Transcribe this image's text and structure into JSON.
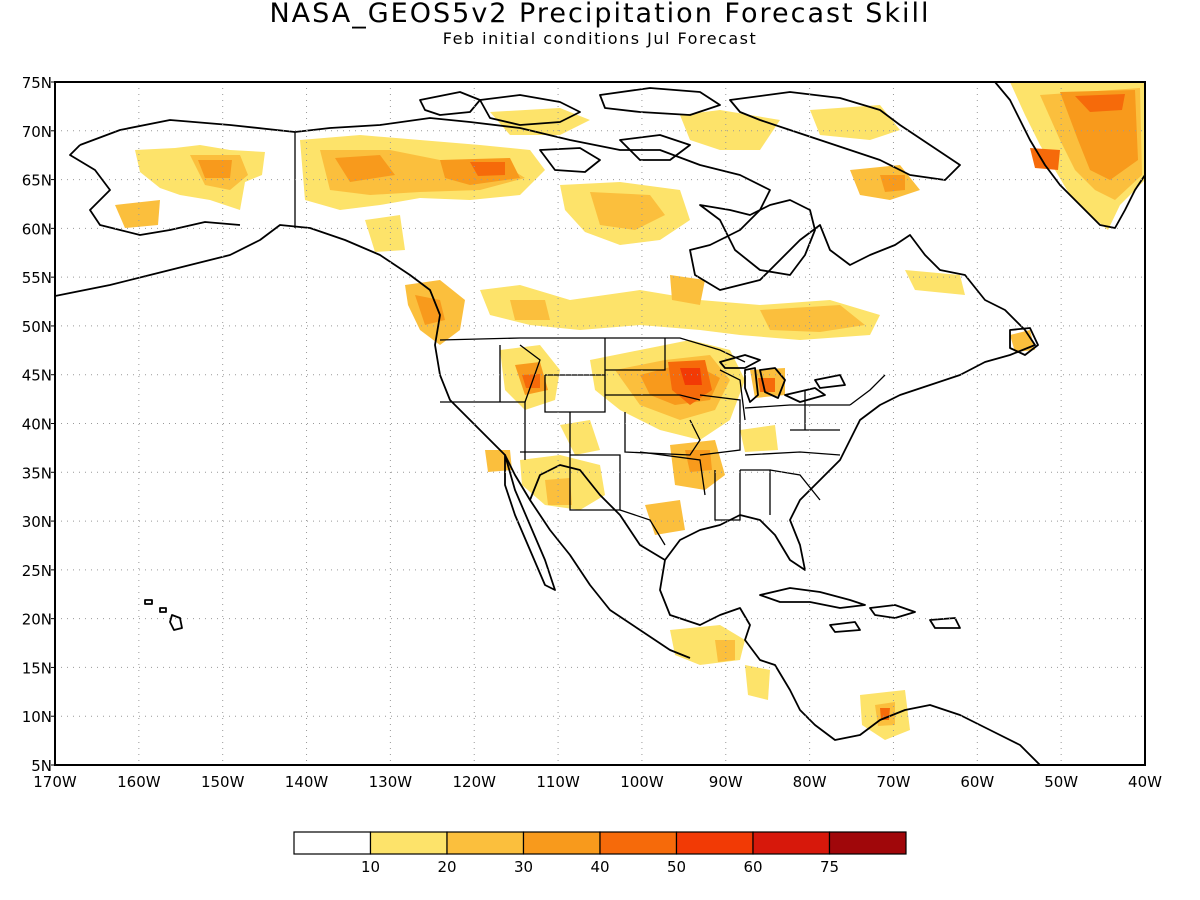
{
  "title": "NASA_GEOS5v2 Precipitation Forecast Skill",
  "subtitle": "Feb initial conditions  Jul Forecast",
  "lat_labels": [
    "75N",
    "70N",
    "65N",
    "60N",
    "55N",
    "50N",
    "45N",
    "40N",
    "35N",
    "30N",
    "25N",
    "20N",
    "15N",
    "10N",
    "5N"
  ],
  "lon_labels": [
    "170W",
    "160W",
    "150W",
    "140W",
    "130W",
    "120W",
    "110W",
    "100W",
    "90W",
    "80W",
    "70W",
    "60W",
    "50W",
    "40W"
  ],
  "colorbar": {
    "bins": [
      "#ffffff",
      "#fde36a",
      "#fbbf3d",
      "#f89a1c",
      "#f66a0a",
      "#f23a05",
      "#d7180b",
      "#a0070a"
    ],
    "labels": [
      "10",
      "20",
      "30",
      "40",
      "50",
      "60",
      "75"
    ]
  },
  "map_extent": {
    "lon": [
      -170,
      -40
    ],
    "lat": [
      5,
      75
    ]
  }
}
